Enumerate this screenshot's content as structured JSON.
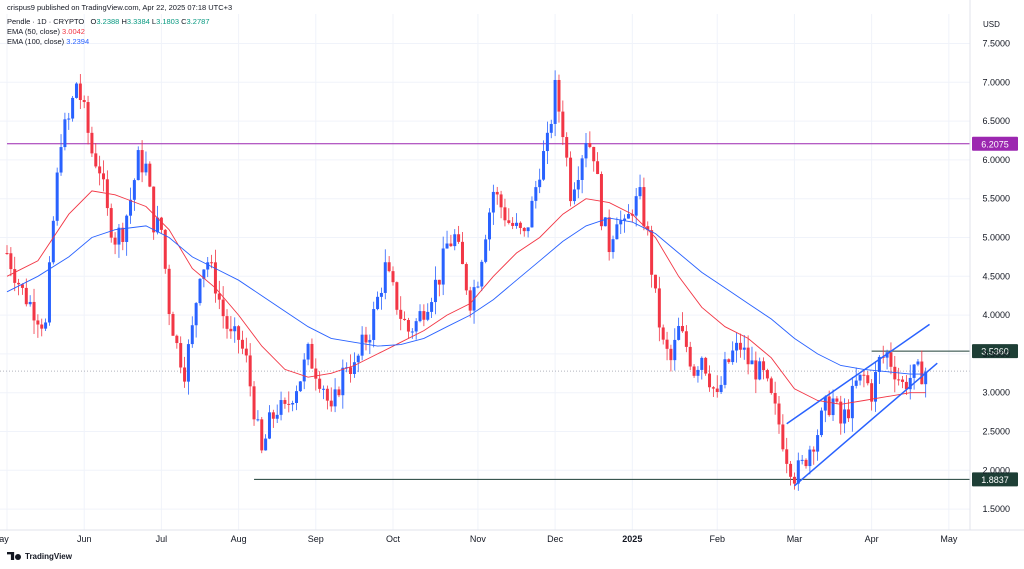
{
  "header": {
    "published": "crispus9 published on TradingView.com, Apr 22, 2025 07:18 UTC+3",
    "symbol": "Pendle · 1D · CRYPTO",
    "o_label": "O",
    "o": "3.2388",
    "h_label": "H",
    "h": "3.3384",
    "l_label": "L",
    "l": "3.1803",
    "c_label": "C",
    "c": "3.2787",
    "ema50_label": "EMA (50, close)",
    "ema50_value": "3.0042",
    "ema100_label": "EMA (100, close)",
    "ema100_value": "3.2394"
  },
  "branding": {
    "logo_text": "TradingView"
  },
  "chart_data": {
    "type": "candlestick",
    "currency": "USD",
    "ylim": [
      1.3,
      7.9
    ],
    "y_ticks": [
      "7.5000",
      "7.0000",
      "6.5000",
      "6.0000",
      "5.5000",
      "5.0000",
      "4.5000",
      "4.0000",
      "3.5000",
      "3.0000",
      "2.5000",
      "2.0000",
      "1.5000"
    ],
    "y_tick_values": [
      7.5,
      7.0,
      6.5,
      6.0,
      5.5,
      5.0,
      4.5,
      4.0,
      3.5,
      3.0,
      2.5,
      2.0,
      1.5
    ],
    "x_ticks": [
      "ay",
      "Jun",
      "Jul",
      "Aug",
      "Sep",
      "Oct",
      "Nov",
      "Dec",
      "2025",
      "Feb",
      "Mar",
      "Apr",
      "May"
    ],
    "x_tick_days": [
      0,
      10,
      20,
      30,
      40,
      50,
      61,
      71,
      81,
      92,
      102,
      112,
      122
    ],
    "x_tick_bold": [
      false,
      false,
      false,
      false,
      false,
      false,
      false,
      false,
      true,
      false,
      false,
      false,
      false
    ],
    "x_range_days": [
      0,
      131
    ],
    "horizontal_levels": [
      {
        "value": 6.2075,
        "label": "6.2075",
        "color": "#9c27b0",
        "from_day": 0
      },
      {
        "value": 3.536,
        "label": "3.5360",
        "color": "#1e3f36",
        "from_day": 112
      },
      {
        "value": 1.8837,
        "label": "1.8837",
        "color": "#1e3f36",
        "from_day": 32
      }
    ],
    "last_price": 3.2787,
    "channel": [
      {
        "from": [
          101,
          2.6
        ],
        "to": [
          119.5,
          3.88
        ],
        "color": "#2962ff"
      },
      {
        "from": [
          102,
          1.8
        ],
        "to": [
          120.5,
          3.38
        ],
        "color": "#2962ff"
      }
    ],
    "price_path": [
      [
        0,
        4.8
      ],
      [
        2,
        4.3
      ],
      [
        4,
        4.0
      ],
      [
        5,
        3.85
      ],
      [
        6,
        5.2
      ],
      [
        7,
        6.3
      ],
      [
        8,
        6.5
      ],
      [
        9,
        7.0
      ],
      [
        10,
        6.6
      ],
      [
        11,
        6.1
      ],
      [
        12,
        5.9
      ],
      [
        13,
        5.3
      ],
      [
        14,
        5.0
      ],
      [
        15,
        5.1
      ],
      [
        16,
        5.5
      ],
      [
        17,
        6.0
      ],
      [
        18,
        5.9
      ],
      [
        19,
        5.2
      ],
      [
        20,
        5.1
      ],
      [
        21,
        4.1
      ],
      [
        22,
        3.6
      ],
      [
        23,
        3.3
      ],
      [
        24,
        3.8
      ],
      [
        25,
        4.6
      ],
      [
        26,
        4.7
      ],
      [
        27,
        4.4
      ],
      [
        28,
        4.0
      ],
      [
        29,
        3.7
      ],
      [
        30,
        3.7
      ],
      [
        31,
        3.4
      ],
      [
        32,
        2.8
      ],
      [
        33,
        2.2
      ],
      [
        34,
        2.6
      ],
      [
        35,
        2.8
      ],
      [
        36,
        2.75
      ],
      [
        37,
        3.0
      ],
      [
        38,
        3.2
      ],
      [
        39,
        3.5
      ],
      [
        40,
        3.3
      ],
      [
        41,
        3.1
      ],
      [
        42,
        2.7
      ],
      [
        43,
        3.1
      ],
      [
        44,
        3.4
      ],
      [
        45,
        3.3
      ],
      [
        46,
        3.6
      ],
      [
        47,
        3.8
      ],
      [
        48,
        4.2
      ],
      [
        49,
        4.6
      ],
      [
        50,
        4.3
      ],
      [
        51,
        4.0
      ],
      [
        52,
        3.8
      ],
      [
        53,
        3.9
      ],
      [
        54,
        4.1
      ],
      [
        55,
        4.3
      ],
      [
        56,
        4.5
      ],
      [
        57,
        4.9
      ],
      [
        58,
        5.0
      ],
      [
        59,
        4.6
      ],
      [
        60,
        4.2
      ],
      [
        61,
        4.5
      ],
      [
        62,
        5.1
      ],
      [
        63,
        5.6
      ],
      [
        64,
        5.4
      ],
      [
        65,
        5.2
      ],
      [
        66,
        5.1
      ],
      [
        67,
        5.0
      ],
      [
        68,
        5.4
      ],
      [
        69,
        5.9
      ],
      [
        70,
        6.2
      ],
      [
        71,
        6.9
      ],
      [
        72,
        6.4
      ],
      [
        73,
        5.6
      ],
      [
        74,
        5.9
      ],
      [
        75,
        6.3
      ],
      [
        76,
        6.1
      ],
      [
        77,
        5.3
      ],
      [
        78,
        4.9
      ],
      [
        79,
        5.3
      ],
      [
        80,
        5.1
      ],
      [
        81,
        5.4
      ],
      [
        82,
        5.5
      ],
      [
        83,
        5.0
      ],
      [
        84,
        4.2
      ],
      [
        85,
        3.6
      ],
      [
        86,
        3.4
      ],
      [
        87,
        3.8
      ],
      [
        88,
        3.6
      ],
      [
        89,
        3.3
      ],
      [
        90,
        3.5
      ],
      [
        91,
        3.2
      ],
      [
        92,
        2.9
      ],
      [
        93,
        3.3
      ],
      [
        94,
        3.5
      ],
      [
        95,
        3.6
      ],
      [
        96,
        3.4
      ],
      [
        97,
        3.3
      ],
      [
        98,
        3.2
      ],
      [
        99,
        2.9
      ],
      [
        100,
        2.6
      ],
      [
        101,
        2.2
      ],
      [
        102,
        1.95
      ],
      [
        103,
        2.05
      ],
      [
        104,
        2.3
      ],
      [
        105,
        2.5
      ],
      [
        106,
        2.8
      ],
      [
        107,
        2.9
      ],
      [
        108,
        2.6
      ],
      [
        109,
        2.8
      ],
      [
        110,
        3.1
      ],
      [
        111,
        3.2
      ],
      [
        112,
        3.0
      ],
      [
        113,
        3.4
      ],
      [
        114,
        3.5
      ],
      [
        115,
        3.3
      ],
      [
        116,
        3.1
      ],
      [
        117,
        3.2
      ],
      [
        118,
        3.25
      ],
      [
        119,
        3.28
      ]
    ],
    "series": [
      {
        "name": "EMA (50, close)",
        "color": "#f23645",
        "values": [
          [
            0,
            4.5
          ],
          [
            4,
            4.7
          ],
          [
            8,
            5.3
          ],
          [
            11,
            5.6
          ],
          [
            14,
            5.55
          ],
          [
            18,
            5.4
          ],
          [
            21,
            5.1
          ],
          [
            24,
            4.6
          ],
          [
            27,
            4.35
          ],
          [
            30,
            4.0
          ],
          [
            33,
            3.6
          ],
          [
            36,
            3.3
          ],
          [
            39,
            3.2
          ],
          [
            42,
            3.25
          ],
          [
            45,
            3.35
          ],
          [
            48,
            3.5
          ],
          [
            51,
            3.65
          ],
          [
            54,
            3.8
          ],
          [
            57,
            4.0
          ],
          [
            60,
            4.15
          ],
          [
            63,
            4.5
          ],
          [
            66,
            4.8
          ],
          [
            69,
            5.0
          ],
          [
            72,
            5.3
          ],
          [
            75,
            5.5
          ],
          [
            78,
            5.45
          ],
          [
            81,
            5.3
          ],
          [
            84,
            5.0
          ],
          [
            87,
            4.5
          ],
          [
            90,
            4.1
          ],
          [
            93,
            3.85
          ],
          [
            96,
            3.7
          ],
          [
            99,
            3.45
          ],
          [
            102,
            3.05
          ],
          [
            105,
            2.9
          ],
          [
            108,
            2.85
          ],
          [
            111,
            2.9
          ],
          [
            114,
            2.95
          ],
          [
            117,
            3.0
          ],
          [
            119,
            3.0
          ]
        ]
      },
      {
        "name": "EMA (100, close)",
        "color": "#2962ff",
        "values": [
          [
            0,
            4.3
          ],
          [
            4,
            4.5
          ],
          [
            8,
            4.75
          ],
          [
            11,
            5.0
          ],
          [
            14,
            5.1
          ],
          [
            18,
            5.15
          ],
          [
            21,
            5.0
          ],
          [
            24,
            4.75
          ],
          [
            27,
            4.6
          ],
          [
            30,
            4.45
          ],
          [
            33,
            4.25
          ],
          [
            36,
            4.05
          ],
          [
            39,
            3.85
          ],
          [
            42,
            3.7
          ],
          [
            45,
            3.65
          ],
          [
            48,
            3.6
          ],
          [
            51,
            3.62
          ],
          [
            54,
            3.7
          ],
          [
            57,
            3.85
          ],
          [
            60,
            4.0
          ],
          [
            63,
            4.2
          ],
          [
            66,
            4.45
          ],
          [
            69,
            4.7
          ],
          [
            72,
            4.95
          ],
          [
            75,
            5.15
          ],
          [
            78,
            5.25
          ],
          [
            81,
            5.2
          ],
          [
            84,
            5.05
          ],
          [
            87,
            4.8
          ],
          [
            90,
            4.55
          ],
          [
            93,
            4.35
          ],
          [
            96,
            4.15
          ],
          [
            99,
            3.95
          ],
          [
            102,
            3.7
          ],
          [
            105,
            3.5
          ],
          [
            108,
            3.35
          ],
          [
            111,
            3.3
          ],
          [
            114,
            3.27
          ],
          [
            117,
            3.24
          ],
          [
            119,
            3.24
          ]
        ]
      }
    ]
  }
}
